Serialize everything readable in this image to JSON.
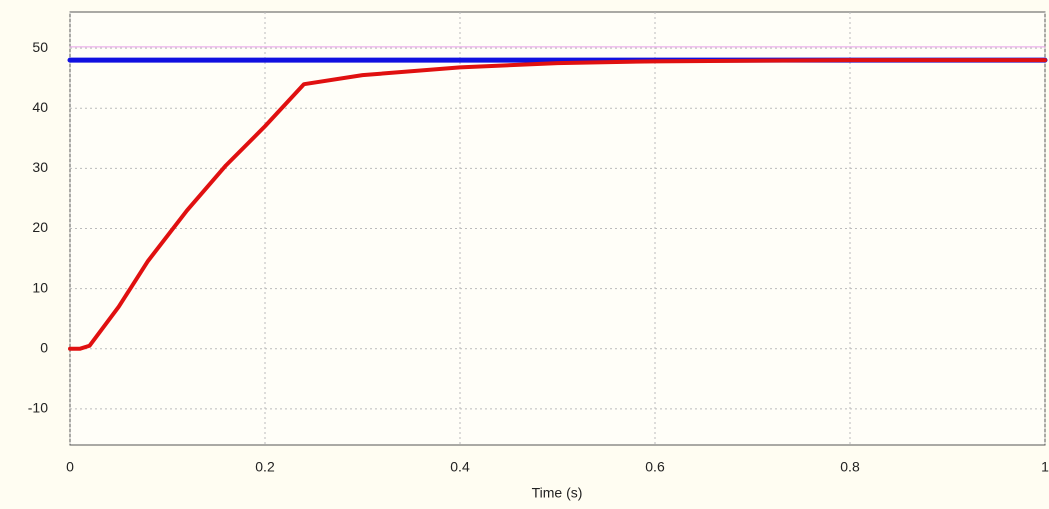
{
  "chart_data": {
    "type": "line",
    "xlabel": "Time (s)",
    "xlim": [
      0,
      1
    ],
    "xticks": [
      0,
      0.2,
      0.4,
      0.6,
      0.8,
      1
    ],
    "ylim": [
      -16,
      56
    ],
    "yticks": [
      -10,
      0,
      10,
      20,
      30,
      40,
      50
    ],
    "grid": true,
    "series": [
      {
        "color": "#e8a0e8",
        "width": 1,
        "x": [
          0,
          1
        ],
        "values": [
          50.2,
          50.2
        ]
      },
      {
        "color": "#1010e0",
        "width": 5,
        "x": [
          0,
          1
        ],
        "values": [
          48,
          48
        ]
      },
      {
        "color": "#e01010",
        "width": 4,
        "x": [
          0,
          0.01,
          0.02,
          0.05,
          0.08,
          0.12,
          0.16,
          0.2,
          0.24,
          0.3,
          0.4,
          0.5,
          0.6,
          0.8,
          1
        ],
        "values": [
          0,
          0,
          0.5,
          7,
          14.6,
          23,
          30.5,
          37,
          44,
          45.5,
          46.8,
          47.5,
          47.8,
          48,
          48
        ]
      }
    ]
  }
}
